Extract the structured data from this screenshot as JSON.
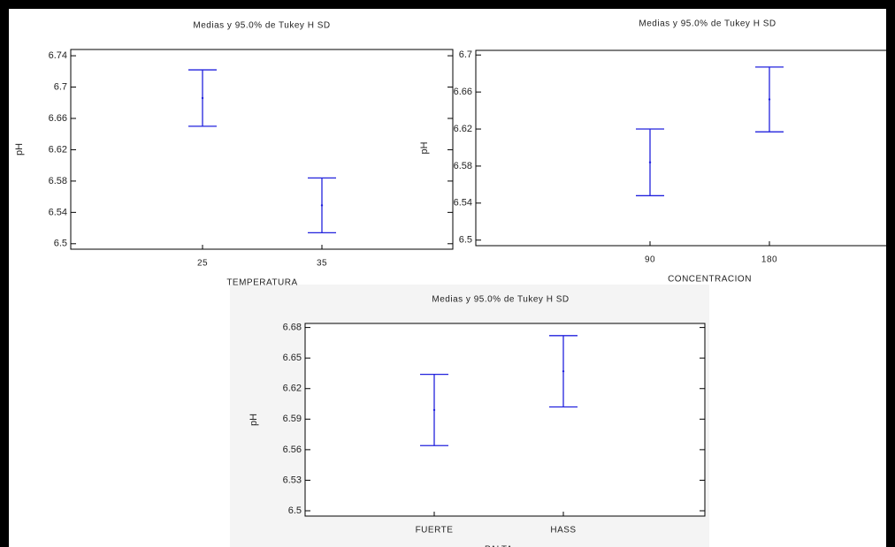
{
  "chart_data": [
    {
      "type": "errorbar",
      "title": "Medias y 95.0% de Tukey H SD",
      "xlabel": "TEMPERATURA",
      "ylabel": "pH",
      "categories": [
        "25",
        "35"
      ],
      "values": [
        6.686,
        6.549
      ],
      "errors": [
        0.036,
        0.035
      ],
      "color": "#2222dd",
      "ylim": [
        6.493,
        6.748
      ],
      "yticks": [
        6.5,
        6.54,
        6.58,
        6.62,
        6.66,
        6.7,
        6.74
      ]
    },
    {
      "type": "errorbar",
      "title": "Medias y 95.0% de Tukey H SD",
      "xlabel": "CONCENTRACION",
      "ylabel": "pH",
      "categories": [
        "90",
        "180"
      ],
      "values": [
        6.584,
        6.652
      ],
      "errors": [
        0.036,
        0.035
      ],
      "color": "#2222dd",
      "ylim": [
        6.494,
        6.705
      ],
      "yticks": [
        6.5,
        6.54,
        6.58,
        6.62,
        6.66,
        6.7
      ]
    },
    {
      "type": "errorbar",
      "title": "Medias y 95.0% de Tukey H SD",
      "xlabel": "PALTA",
      "ylabel": "pH",
      "categories": [
        "FUERTE",
        "HASS"
      ],
      "values": [
        6.599,
        6.637
      ],
      "errors": [
        0.035,
        0.035
      ],
      "color": "#2222dd",
      "ylim": [
        6.4948,
        6.684
      ],
      "yticks": [
        6.5,
        6.53,
        6.56,
        6.59,
        6.62,
        6.65,
        6.68
      ]
    }
  ]
}
